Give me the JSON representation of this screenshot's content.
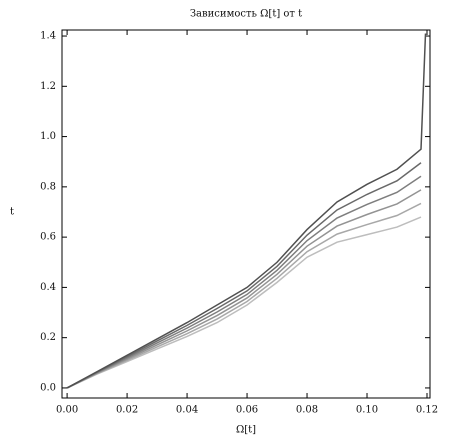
{
  "chart_data": {
    "type": "line",
    "title": "Зависимость Ω[t] от t",
    "x_label": "Ω[t]",
    "y_label": "t",
    "x": [
      0,
      0.01,
      0.02,
      0.03,
      0.04,
      0.05,
      0.06,
      0.07,
      0.08,
      0.09,
      0.1,
      0.11,
      0.118,
      0.1195
    ],
    "series": [
      {
        "color": "#bdbdbd",
        "values": [
          0,
          0.055,
          0.105,
          0.155,
          0.205,
          0.26,
          0.33,
          0.42,
          0.52,
          0.58,
          0.61,
          0.64,
          0.68,
          null
        ]
      },
      {
        "color": "#a8a8a8",
        "values": [
          0,
          0.057,
          0.11,
          0.163,
          0.216,
          0.274,
          0.344,
          0.436,
          0.542,
          0.612,
          0.65,
          0.686,
          0.734,
          null
        ]
      },
      {
        "color": "#939393",
        "values": [
          0,
          0.059,
          0.115,
          0.171,
          0.227,
          0.288,
          0.358,
          0.452,
          0.564,
          0.644,
          0.69,
          0.732,
          0.788,
          null
        ]
      },
      {
        "color": "#7e7e7e",
        "values": [
          0,
          0.061,
          0.12,
          0.179,
          0.238,
          0.302,
          0.372,
          0.468,
          0.586,
          0.676,
          0.73,
          0.778,
          0.842,
          null
        ]
      },
      {
        "color": "#696969",
        "values": [
          0,
          0.063,
          0.125,
          0.187,
          0.249,
          0.316,
          0.386,
          0.484,
          0.608,
          0.708,
          0.77,
          0.824,
          0.896,
          null
        ]
      },
      {
        "color": "#505050",
        "values": [
          0,
          0.065,
          0.13,
          0.195,
          0.26,
          0.33,
          0.4,
          0.5,
          0.63,
          0.74,
          0.81,
          0.87,
          0.95,
          1.41
        ]
      }
    ],
    "xlim": [
      -0.0017,
      0.121
    ],
    "xticks": [
      {
        "value": 0,
        "label": "0.00"
      },
      0.02,
      0.04,
      0.06,
      0.08,
      {
        "value": 0.1,
        "label": "0.10"
      },
      0.12
    ],
    "ylim": [
      -0.04,
      1.424
    ],
    "yticks": [
      {
        "value": 0,
        "label": "0.0"
      },
      0.2,
      0.4,
      0.6,
      0.8,
      {
        "value": 1,
        "label": "1.0"
      },
      1.2,
      1.4
    ]
  }
}
